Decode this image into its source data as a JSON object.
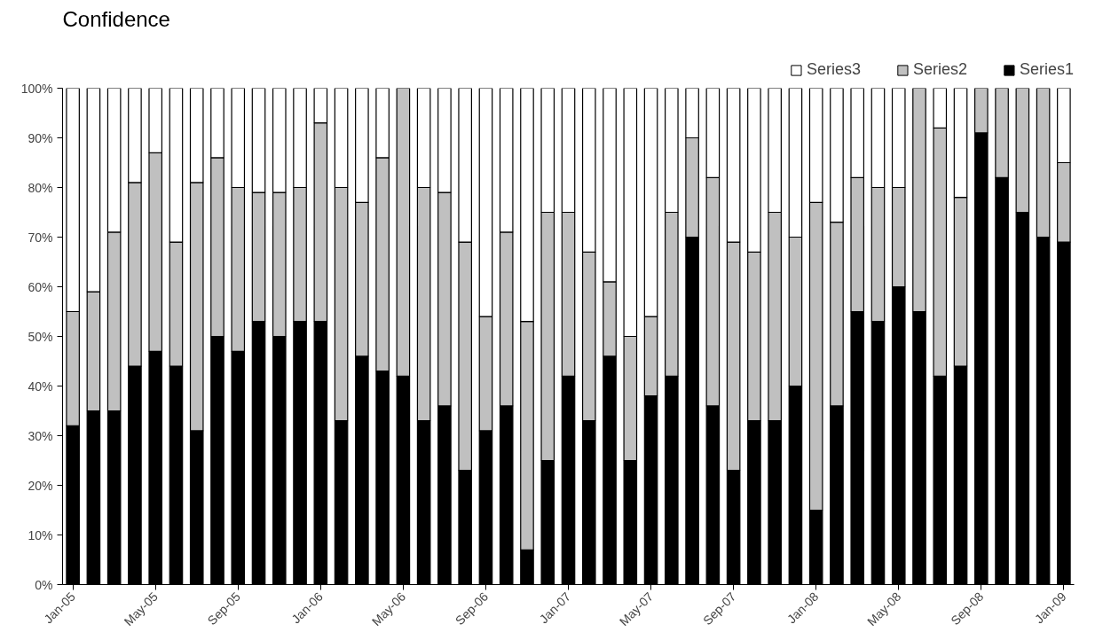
{
  "chart_data": {
    "type": "bar",
    "title": "Confidence",
    "stacked": true,
    "categories": [
      "Jan-05",
      null,
      null,
      null,
      "May-05",
      null,
      null,
      null,
      "Sep-05",
      null,
      null,
      null,
      "Jan-06",
      null,
      null,
      null,
      "May-06",
      null,
      null,
      null,
      "Sep-06",
      null,
      null,
      null,
      "Jan-07",
      null,
      null,
      null,
      "May-07",
      null,
      null,
      null,
      "Sep-07",
      null,
      null,
      null,
      "Jan-08",
      null,
      null,
      null,
      "May-08",
      null,
      null,
      null,
      "Sep-08",
      null,
      null,
      null,
      "Jan-09"
    ],
    "series": [
      {
        "name": "Series1",
        "color": "#000000",
        "values": [
          32,
          35,
          35,
          44,
          47,
          44,
          31,
          50,
          47,
          53,
          50,
          53,
          53,
          33,
          46,
          43,
          42,
          33,
          36,
          23,
          31,
          36,
          7,
          25,
          42,
          33,
          46,
          25,
          38,
          42,
          70,
          36,
          23,
          33,
          33,
          40,
          15,
          36,
          55,
          53,
          60,
          55,
          42,
          44,
          91,
          82,
          75,
          70,
          69
        ]
      },
      {
        "name": "Series2",
        "color": "#c0c0c0",
        "values": [
          23,
          24,
          36,
          37,
          40,
          25,
          50,
          36,
          33,
          26,
          29,
          27,
          40,
          47,
          31,
          43,
          58,
          47,
          43,
          46,
          23,
          35,
          46,
          50,
          33,
          34,
          15,
          25,
          16,
          33,
          20,
          46,
          46,
          34,
          42,
          30,
          62,
          37,
          27,
          27,
          20,
          45,
          50,
          34,
          9,
          18,
          25,
          30,
          16
        ]
      },
      {
        "name": "Series3",
        "color": "#ffffff",
        "values": [
          45,
          41,
          29,
          19,
          13,
          31,
          19,
          14,
          20,
          21,
          21,
          20,
          7,
          20,
          23,
          14,
          0,
          20,
          21,
          31,
          46,
          29,
          47,
          25,
          25,
          33,
          39,
          50,
          46,
          25,
          10,
          18,
          31,
          33,
          25,
          30,
          23,
          27,
          18,
          20,
          20,
          0,
          8,
          22,
          0,
          0,
          0,
          0,
          15
        ]
      }
    ],
    "ylim": [
      0,
      100
    ],
    "yticks": [
      {
        "value": 0,
        "label": "0%"
      },
      {
        "value": 10,
        "label": "10%"
      },
      {
        "value": 20,
        "label": "20%"
      },
      {
        "value": 30,
        "label": "30%"
      },
      {
        "value": 40,
        "label": "40%"
      },
      {
        "value": 50,
        "label": "50%"
      },
      {
        "value": 60,
        "label": "60%"
      },
      {
        "value": 70,
        "label": "70%"
      },
      {
        "value": 80,
        "label": "80%"
      },
      {
        "value": 90,
        "label": "90%"
      },
      {
        "value": 100,
        "label": "100%"
      }
    ],
    "legend": "top right"
  }
}
